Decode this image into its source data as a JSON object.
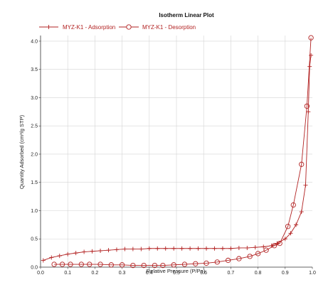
{
  "chart_data": {
    "type": "line",
    "title": "Isotherm Linear Plot",
    "xlabel": "Relative Pressure (P/Po)",
    "ylabel": "Quantity Adsorbed (cm³/g STP)",
    "xlim": [
      0.0,
      1.0
    ],
    "ylim": [
      0.0,
      4.1
    ],
    "xticks": [
      0.0,
      0.1,
      0.2,
      0.3,
      0.4,
      0.5,
      0.6,
      0.7,
      0.8,
      0.9,
      1.0
    ],
    "xtick_labels": [
      "0.0",
      "0.1",
      "0.2",
      "0.3",
      "0.4",
      "0.5",
      "0.6",
      "0.7",
      "0.8",
      "0.9",
      "1.0"
    ],
    "yticks": [
      0.0,
      0.5,
      1.0,
      1.5,
      2.0,
      2.5,
      3.0,
      3.5,
      4.0
    ],
    "ytick_labels": [
      "0.0",
      "0.5",
      "1.0",
      "1.5",
      "2.0",
      "2.5",
      "3.0",
      "3.5",
      "4.0"
    ],
    "grid": true,
    "legend_position": "top-left",
    "series": [
      {
        "name": "MYZ-K1 - Adsorption",
        "marker": "plus",
        "color": "#b22222",
        "x": [
          0.01,
          0.04,
          0.07,
          0.1,
          0.13,
          0.16,
          0.19,
          0.22,
          0.25,
          0.28,
          0.31,
          0.34,
          0.37,
          0.4,
          0.43,
          0.46,
          0.49,
          0.52,
          0.55,
          0.58,
          0.61,
          0.64,
          0.67,
          0.7,
          0.73,
          0.76,
          0.79,
          0.82,
          0.85,
          0.87,
          0.9,
          0.92,
          0.94,
          0.96,
          0.975,
          0.985,
          0.99,
          0.995
        ],
        "y": [
          0.12,
          0.17,
          0.2,
          0.23,
          0.25,
          0.27,
          0.28,
          0.29,
          0.3,
          0.31,
          0.32,
          0.32,
          0.32,
          0.33,
          0.33,
          0.33,
          0.33,
          0.33,
          0.33,
          0.33,
          0.33,
          0.33,
          0.33,
          0.33,
          0.34,
          0.34,
          0.35,
          0.36,
          0.38,
          0.42,
          0.5,
          0.6,
          0.75,
          0.98,
          1.45,
          2.75,
          3.55,
          3.75
        ]
      },
      {
        "name": "MYZ-K1 - Desorption",
        "marker": "circle",
        "color": "#b22222",
        "x": [
          0.995,
          0.98,
          0.96,
          0.93,
          0.91,
          0.88,
          0.86,
          0.83,
          0.8,
          0.77,
          0.73,
          0.69,
          0.65,
          0.61,
          0.57,
          0.53,
          0.49,
          0.45,
          0.42,
          0.38,
          0.34,
          0.3,
          0.26,
          0.22,
          0.18,
          0.15,
          0.11,
          0.08,
          0.05
        ],
        "y": [
          4.06,
          2.85,
          1.82,
          1.1,
          0.72,
          0.42,
          0.38,
          0.3,
          0.24,
          0.19,
          0.15,
          0.12,
          0.09,
          0.07,
          0.06,
          0.05,
          0.04,
          0.03,
          0.03,
          0.03,
          0.03,
          0.04,
          0.04,
          0.05,
          0.05,
          0.05,
          0.05,
          0.05,
          0.05
        ]
      }
    ]
  }
}
